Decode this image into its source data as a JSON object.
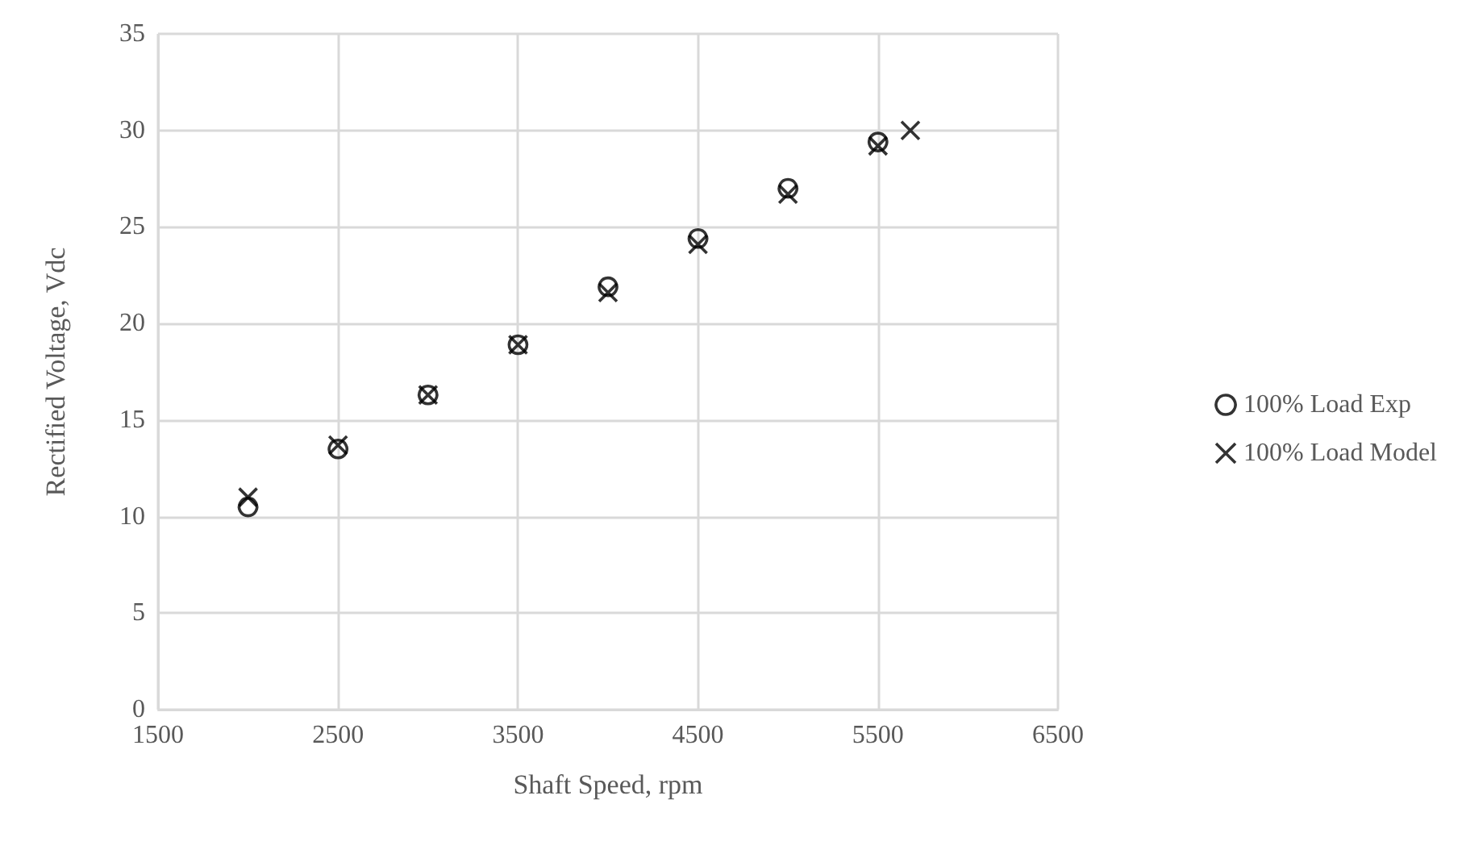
{
  "chart_data": {
    "type": "scatter",
    "xlabel": "Shaft Speed, rpm",
    "ylabel": "Rectified Voltage, Vdc",
    "xlim": [
      1500,
      6500
    ],
    "xticks": [
      1500,
      2500,
      3500,
      4500,
      5500,
      6500
    ],
    "ylim": [
      0,
      35
    ],
    "yticks": [
      0,
      5,
      10,
      15,
      20,
      25,
      30,
      35
    ],
    "grid": true,
    "legend": "right",
    "series": [
      {
        "name": "100% Load Exp",
        "color": "#000000",
        "marker": "circle",
        "x": [
          2000,
          2500,
          3000,
          3500,
          4000,
          4500,
          5000,
          5500
        ],
        "values": [
          10.5,
          13.5,
          16.3,
          18.9,
          21.9,
          24.4,
          27.0,
          29.4
        ]
      },
      {
        "name": "100% Load Model",
        "color": "#000000",
        "marker": "cross",
        "x": [
          2000,
          2500,
          3000,
          3500,
          4000,
          4500,
          5000,
          5500,
          5680
        ],
        "values": [
          11.0,
          13.7,
          16.3,
          18.9,
          21.6,
          24.1,
          26.7,
          29.2,
          30.0
        ]
      }
    ]
  }
}
